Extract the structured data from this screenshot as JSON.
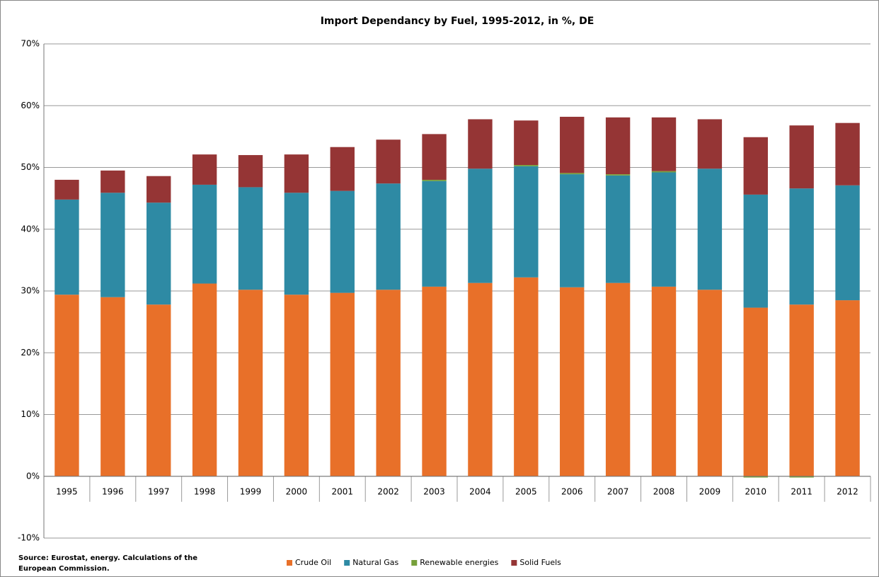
{
  "chart_data": {
    "type": "stacked_bar",
    "title": "Import Dependancy by Fuel, 1995-2012, in %, DE",
    "source": [
      "Source: Eurostat, energy. Calculations of the",
      "European Commission."
    ],
    "categories": [
      "1995",
      "1996",
      "1997",
      "1998",
      "1999",
      "2000",
      "2001",
      "2002",
      "2003",
      "2004",
      "2005",
      "2006",
      "2007",
      "2008",
      "2009",
      "2010",
      "2011",
      "2012"
    ],
    "series": [
      {
        "name": "Crude Oil",
        "color": "#e87029",
        "values": [
          29.4,
          29.0,
          27.8,
          31.2,
          30.2,
          29.4,
          29.7,
          30.2,
          30.7,
          31.3,
          32.2,
          30.6,
          31.3,
          30.7,
          30.2,
          27.3,
          27.8,
          28.5
        ]
      },
      {
        "name": "Natural Gas",
        "color": "#2e8aa4",
        "values": [
          15.4,
          16.9,
          16.5,
          16.0,
          16.6,
          16.5,
          16.5,
          17.2,
          17.1,
          18.5,
          18.0,
          18.3,
          17.4,
          18.5,
          19.6,
          18.3,
          18.8,
          18.6
        ]
      },
      {
        "name": "Renewable energies",
        "color": "#77a03a",
        "values": [
          0,
          0,
          0,
          0,
          0,
          0,
          0,
          0,
          0.2,
          0,
          0.2,
          0.2,
          0.2,
          0.2,
          0,
          -0.2,
          -0.2,
          0
        ]
      },
      {
        "name": "Solid Fuels",
        "color": "#953535",
        "values": [
          3.2,
          3.6,
          4.3,
          4.9,
          5.2,
          6.2,
          7.1,
          7.1,
          7.4,
          8.0,
          7.2,
          9.1,
          9.2,
          8.7,
          8.0,
          9.3,
          10.2,
          10.1
        ]
      }
    ],
    "ylim": [
      -10,
      70
    ],
    "yticks": [
      {
        "value": -10,
        "label": "-10%"
      },
      {
        "value": 0,
        "label": "0%"
      },
      {
        "value": 10,
        "label": "10%"
      },
      {
        "value": 20,
        "label": "20%"
      },
      {
        "value": 30,
        "label": "30%"
      },
      {
        "value": 40,
        "label": "40%"
      },
      {
        "value": 50,
        "label": "50%"
      },
      {
        "value": 60,
        "label": "60%"
      },
      {
        "value": 70,
        "label": "70%"
      }
    ],
    "grid": true,
    "legend": "bottom"
  }
}
